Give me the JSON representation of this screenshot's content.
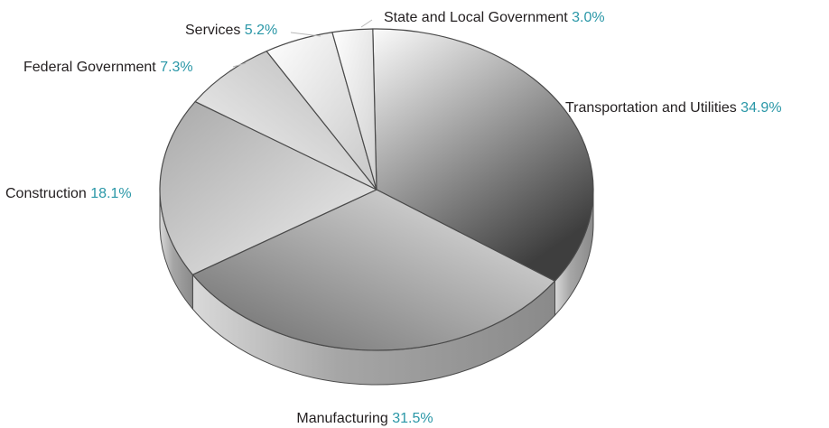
{
  "chart_data": {
    "type": "pie",
    "title": "",
    "unit": "%",
    "start_category": "Transportation and Utilities",
    "categories": [
      "Transportation and Utilities",
      "Manufacturing",
      "Construction",
      "Federal Government",
      "Services",
      "State and Local Government"
    ],
    "values": [
      34.9,
      31.5,
      18.1,
      7.3,
      5.2,
      3.0
    ],
    "value_labels": [
      "34.9%",
      "31.5%",
      "18.1%",
      "7.3%",
      "5.2%",
      "3.0%"
    ],
    "legend": "none (labels placed next to slices)",
    "style": "3D tilted pie, grayscale gradient slices",
    "colors": {
      "label_text": "#231f20",
      "value_text": "#2a97a7",
      "slice_edge": "#4a4a4a",
      "leader_line": "#b8b8b8"
    }
  }
}
